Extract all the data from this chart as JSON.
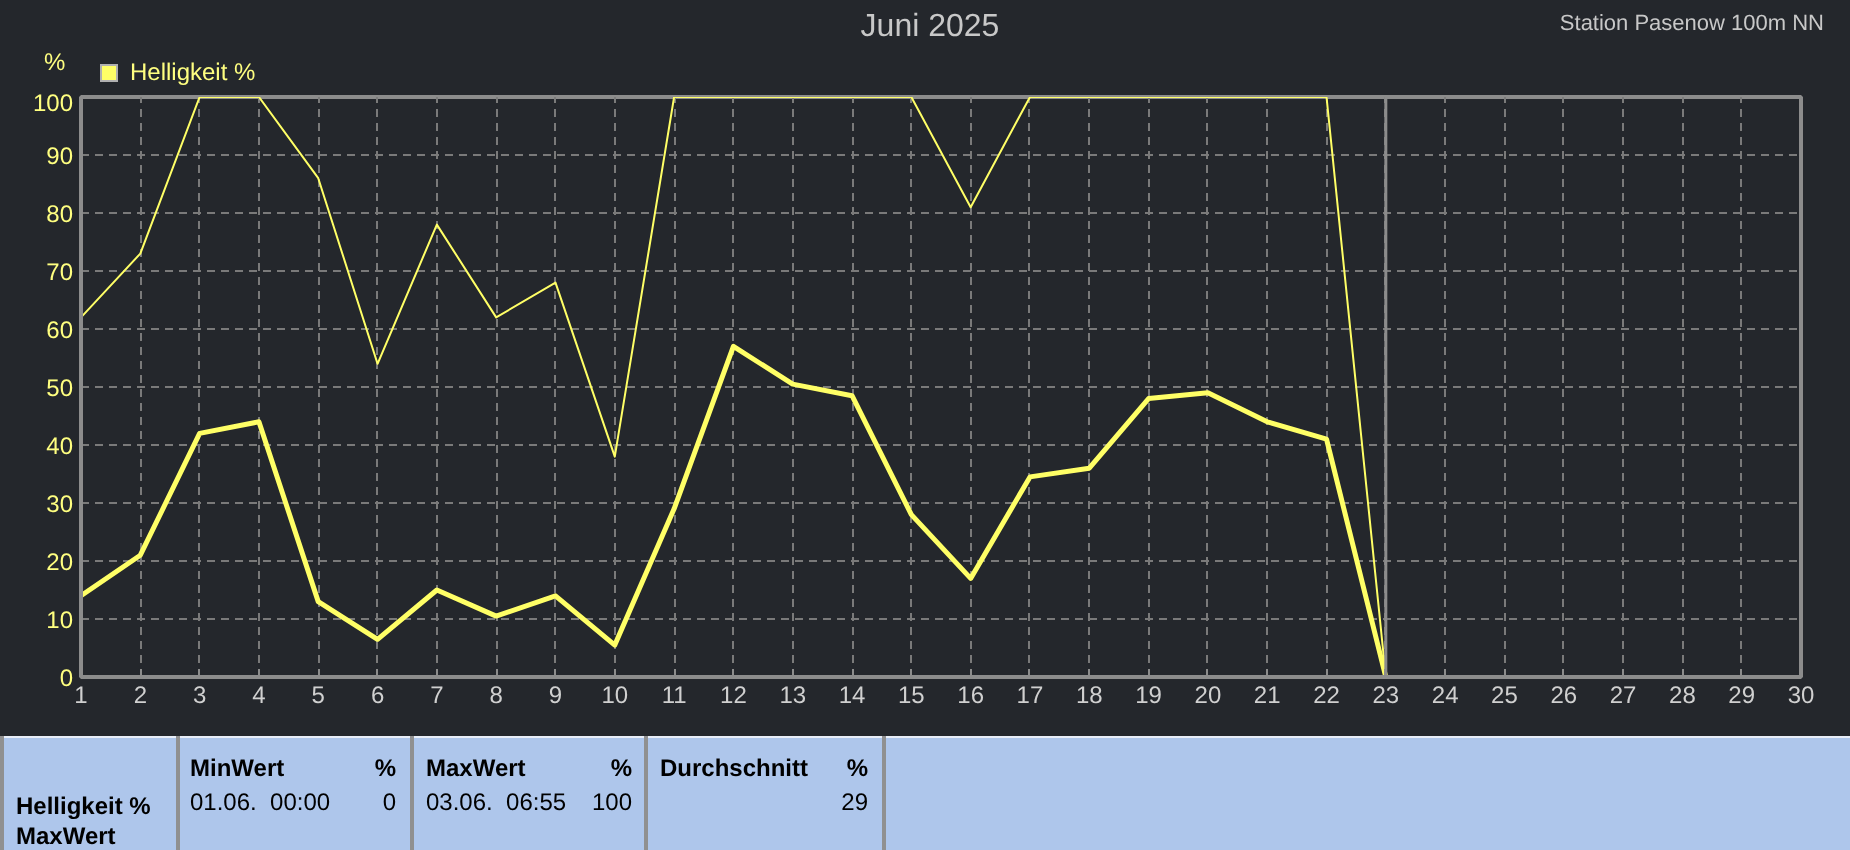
{
  "chart_data": {
    "type": "line",
    "title": "Juni 2025",
    "subtitle": "Station Pasenow 100m NN",
    "ylabel": "%",
    "x": [
      1,
      2,
      3,
      4,
      5,
      6,
      7,
      8,
      9,
      10,
      11,
      12,
      13,
      14,
      15,
      16,
      17,
      18,
      19,
      20,
      21,
      22,
      23
    ],
    "series": [
      {
        "name": "Helligkeit %",
        "color": "#ffff66",
        "values": [
          14,
          21,
          42,
          44,
          13,
          6.5,
          15,
          10.5,
          14,
          5.5,
          29,
          57,
          50.5,
          48.5,
          28,
          17,
          34.5,
          36,
          48,
          49,
          44,
          41,
          0
        ]
      },
      {
        "color": "#ffff66",
        "values": [
          62,
          73,
          100,
          100,
          86,
          54,
          78,
          62,
          68,
          38,
          100,
          100,
          100,
          100,
          100,
          81,
          100,
          100,
          100,
          100,
          100,
          100,
          0
        ]
      }
    ],
    "xlim": [
      1,
      30
    ],
    "xticks": [
      1,
      2,
      3,
      4,
      5,
      6,
      7,
      8,
      9,
      10,
      11,
      12,
      13,
      14,
      15,
      16,
      17,
      18,
      19,
      20,
      21,
      22,
      23,
      24,
      25,
      26,
      27,
      28,
      29,
      30
    ],
    "ylim": [
      0,
      100
    ],
    "yticks": [
      0,
      10,
      20,
      30,
      40,
      50,
      60,
      70,
      80,
      90,
      100
    ],
    "ref_lines": [
      {
        "axis": "x",
        "value": 23,
        "color": "#8c8c8c"
      }
    ],
    "grid": true,
    "legend": "top left",
    "annotations": [
      "Helligkeit %",
      "MaxWert",
      "MinWert",
      "%",
      "01.06.  00:00",
      "0",
      "MaxWert",
      "%",
      "03.06.  06:55",
      "100",
      "Durchschnitt",
      "%",
      "29"
    ]
  }
}
